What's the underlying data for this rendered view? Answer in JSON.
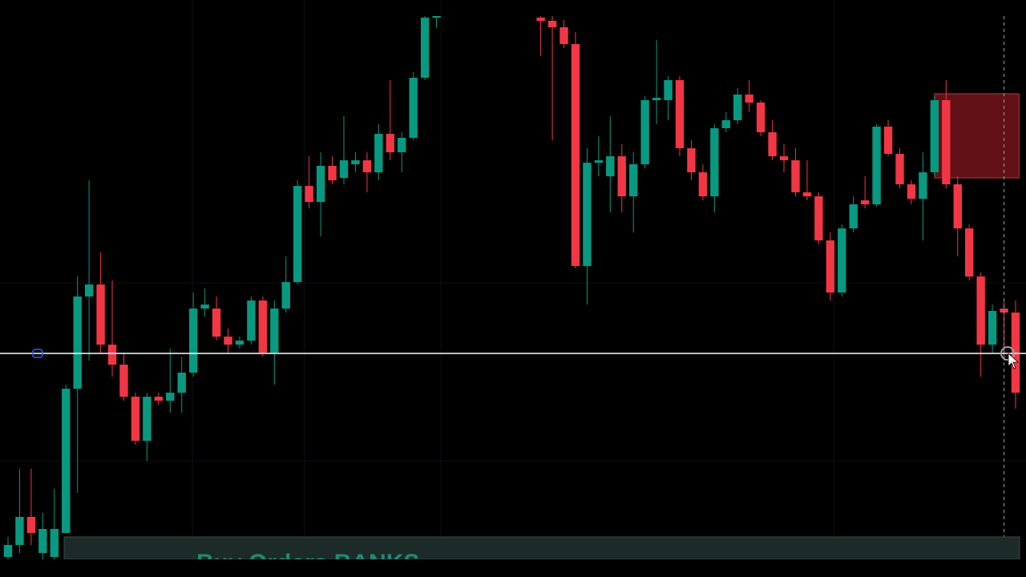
{
  "chart_data": {
    "type": "candlestick",
    "annotation": "Buy Orders BANKS",
    "x": [
      0,
      1,
      2,
      3,
      4,
      5,
      6,
      7,
      8,
      9,
      10,
      11,
      12,
      13,
      14,
      15,
      16,
      17,
      18,
      19,
      20,
      21,
      22,
      23,
      24,
      25,
      26,
      27,
      28,
      29,
      30,
      31,
      32,
      33,
      34,
      35,
      36,
      37,
      46,
      47,
      48,
      49,
      50,
      51,
      52,
      53,
      54,
      55,
      56,
      57,
      58,
      59,
      60,
      61,
      62,
      63,
      64,
      65,
      66,
      67,
      68,
      69,
      70,
      71,
      72,
      73,
      74,
      75,
      76,
      77,
      78,
      79,
      80,
      81,
      82,
      83,
      84,
      85,
      86,
      87
    ],
    "open": [
      25,
      40,
      75,
      30,
      25,
      55,
      235,
      350,
      365,
      290,
      265,
      225,
      170,
      225,
      220,
      230,
      255,
      335,
      335,
      300,
      290,
      295,
      345,
      280,
      335,
      368,
      488,
      468,
      513,
      498,
      515,
      520,
      505,
      553,
      530,
      548,
      623,
      698,
      698,
      694,
      686,
      665,
      388,
      517,
      500,
      525,
      475,
      515,
      595,
      595,
      620,
      535,
      505,
      475,
      560,
      570,
      602,
      592,
      555,
      525,
      520,
      480,
      475,
      420,
      355,
      435,
      470,
      465,
      562,
      528,
      490,
      472,
      505,
      595,
      490,
      435,
      375,
      290,
      335,
      330
    ],
    "high": [
      50,
      135,
      135,
      80,
      110,
      240,
      375,
      495,
      405,
      370,
      280,
      230,
      230,
      230,
      285,
      275,
      355,
      360,
      350,
      310,
      300,
      350,
      350,
      345,
      400,
      495,
      525,
      530,
      525,
      575,
      530,
      530,
      565,
      620,
      555,
      630,
      700,
      700,
      700,
      700,
      695,
      680,
      535,
      550,
      575,
      540,
      530,
      600,
      670,
      625,
      625,
      545,
      515,
      565,
      580,
      610,
      620,
      595,
      570,
      540,
      535,
      520,
      480,
      430,
      440,
      475,
      500,
      565,
      570,
      535,
      495,
      530,
      600,
      620,
      500,
      440,
      380,
      340,
      345,
      345
    ],
    "low": [
      20,
      30,
      40,
      20,
      20,
      55,
      105,
      270,
      280,
      250,
      220,
      165,
      145,
      215,
      205,
      205,
      250,
      325,
      295,
      280,
      285,
      290,
      275,
      240,
      330,
      365,
      460,
      425,
      490,
      490,
      505,
      480,
      495,
      520,
      505,
      545,
      620,
      685,
      650,
      545,
      660,
      385,
      340,
      500,
      455,
      455,
      430,
      510,
      565,
      570,
      525,
      495,
      470,
      455,
      555,
      565,
      580,
      550,
      520,
      505,
      475,
      470,
      415,
      345,
      350,
      430,
      460,
      462,
      525,
      485,
      465,
      420,
      500,
      485,
      400,
      370,
      250,
      280,
      270,
      210
    ],
    "close": [
      40,
      75,
      55,
      60,
      60,
      235,
      350,
      365,
      290,
      265,
      225,
      170,
      225,
      220,
      230,
      255,
      335,
      340,
      300,
      290,
      295,
      345,
      280,
      335,
      368,
      488,
      468,
      513,
      495,
      520,
      520,
      505,
      553,
      530,
      548,
      623,
      698,
      700,
      694,
      686,
      665,
      388,
      517,
      520,
      525,
      475,
      515,
      595,
      598,
      620,
      535,
      505,
      475,
      560,
      570,
      602,
      592,
      555,
      525,
      520,
      480,
      475,
      420,
      355,
      435,
      465,
      465,
      562,
      528,
      490,
      472,
      505,
      595,
      490,
      435,
      375,
      290,
      332,
      330,
      230
    ],
    "up_color": "#089981",
    "down_color": "#f23645",
    "xlim": [
      0,
      87
    ],
    "ylim": [
      0,
      720
    ],
    "hline": 279,
    "zone": {
      "xlim": [
        80,
        87.3
      ],
      "ylim": [
        498,
        603
      ],
      "color": "#8b1a1f"
    },
    "crosshair_x": 86
  }
}
